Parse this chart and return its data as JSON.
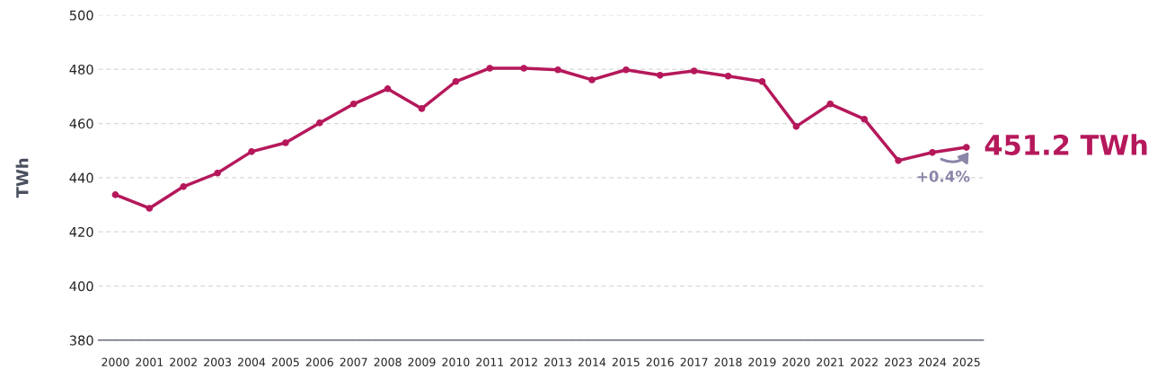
{
  "chart_data": {
    "type": "line",
    "ylabel": "TWh",
    "categories": [
      "2000",
      "2001",
      "2002",
      "2003",
      "2004",
      "2005",
      "2006",
      "2007",
      "2008",
      "2009",
      "2010",
      "2011",
      "2012",
      "2013",
      "2014",
      "2015",
      "2016",
      "2017",
      "2018",
      "2019",
      "2020",
      "2021",
      "2022",
      "2023",
      "2024",
      "2025"
    ],
    "series": [
      {
        "color": "#b5185b",
        "values": [
          433.7,
          428.7,
          436.7,
          441.7,
          449.6,
          452.9,
          460.2,
          467.2,
          472.8,
          465.5,
          475.5,
          480.4,
          480.4,
          479.8,
          476.1,
          479.8,
          477.8,
          479.4,
          477.5,
          475.5,
          458.9,
          467.2,
          461.6,
          446.3,
          449.3,
          451.2
        ]
      }
    ],
    "ylim": [
      380,
      500
    ],
    "yticks": [
      380,
      400,
      420,
      440,
      460,
      480,
      500
    ],
    "grid": "y",
    "marker": "circle",
    "line_style": "solid",
    "annotations": [
      {
        "text": "451.2 TWh",
        "x": "2025",
        "y": 451.2
      },
      "+0.4%"
    ]
  }
}
